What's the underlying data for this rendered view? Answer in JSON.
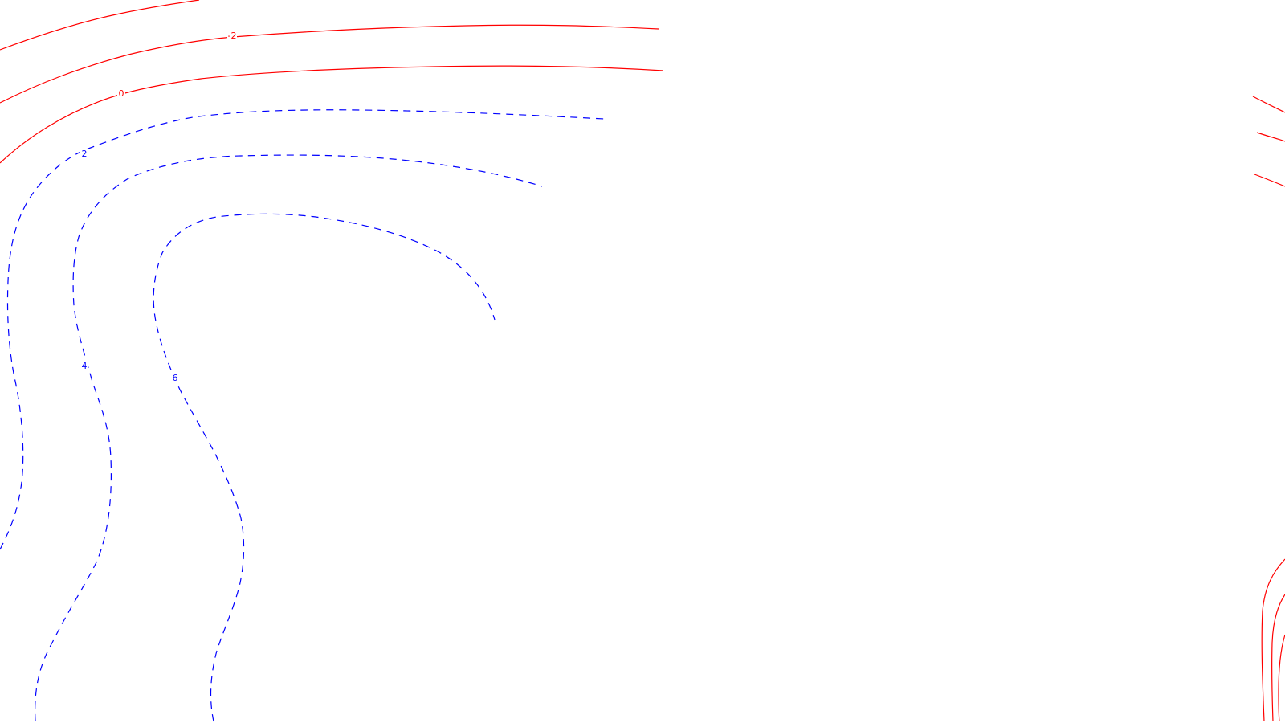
{
  "map": {
    "type": "contour",
    "colors": {
      "background": "#ffffff",
      "non_positive_contours": "#ff0000",
      "positive_contours": "#0000ff"
    },
    "line_styles": {
      "non_positive_contours": "solid",
      "positive_contours": "dashed"
    },
    "contour_levels_labeled": [
      {
        "value": "-2",
        "color": "#ff0000",
        "style": "solid"
      },
      {
        "value": "0",
        "color": "#ff0000",
        "style": "solid"
      },
      {
        "value": "2",
        "color": "#0000ff",
        "style": "dashed"
      },
      {
        "value": "4",
        "color": "#0000ff",
        "style": "dashed"
      },
      {
        "value": "6",
        "color": "#0000ff",
        "style": "dashed"
      }
    ]
  }
}
